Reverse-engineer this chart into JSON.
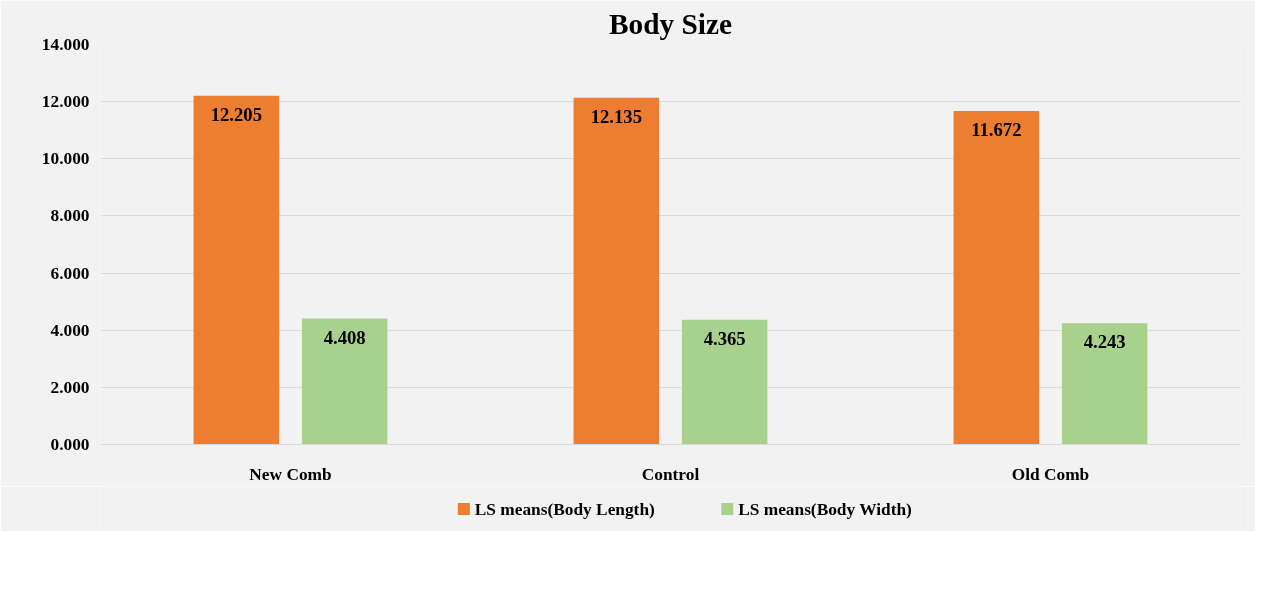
{
  "chart_data": {
    "type": "bar",
    "title": "Body Size",
    "categories": [
      "New Comb",
      "Control",
      "Old Comb"
    ],
    "series": [
      {
        "name": "LS means(Body Length)",
        "color": "#ed7d31",
        "values": [
          12.205,
          12.135,
          11.672
        ]
      },
      {
        "name": "LS means(Body Width)",
        "color": "#a9d18e",
        "values": [
          4.408,
          4.365,
          4.243
        ]
      }
    ],
    "ylim": [
      0,
      14
    ],
    "yticks": [
      {
        "value": 0,
        "label": "0.000"
      },
      {
        "value": 2,
        "label": "2.000"
      },
      {
        "value": 4,
        "label": "4.000"
      },
      {
        "value": 6,
        "label": "6.000"
      },
      {
        "value": 8,
        "label": "8.000"
      },
      {
        "value": 10,
        "label": "10.000"
      },
      {
        "value": 12,
        "label": "12.000"
      },
      {
        "value": 14,
        "label": "14.000"
      }
    ],
    "grid": "y",
    "legend": "bottom",
    "data_labels": true
  }
}
